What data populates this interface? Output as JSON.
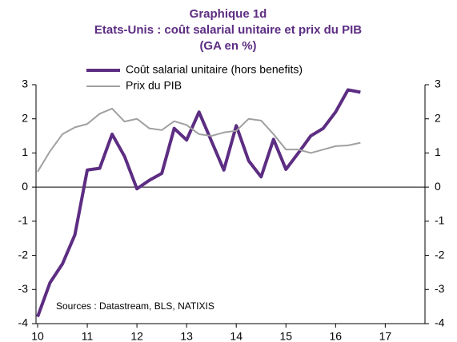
{
  "chart_data": {
    "type": "line",
    "title": "Graphique 1d",
    "subtitle": "Etats-Unis : coût salarial unitaire et prix du PIB",
    "subtitle2": "(GA en %)",
    "annotation": "Sources : Datastream, BLS,  NATIXIS",
    "x": [
      10,
      10.25,
      10.5,
      10.75,
      11,
      11.25,
      11.5,
      11.75,
      12,
      12.25,
      12.5,
      12.75,
      13,
      13.25,
      13.5,
      13.75,
      14,
      14.25,
      14.5,
      14.75,
      15,
      15.25,
      15.5,
      15.75,
      16,
      16.25,
      16.5
    ],
    "series": [
      {
        "name": "Coût salarial unitaire (hors benefits)",
        "color": "#5c2d82",
        "values": [
          -3.8,
          -2.8,
          -2.25,
          -1.4,
          0.5,
          0.55,
          1.55,
          0.9,
          -0.05,
          0.2,
          0.4,
          1.72,
          1.38,
          2.2,
          1.35,
          0.5,
          1.8,
          0.77,
          0.3,
          1.4,
          0.52,
          1.0,
          1.5,
          1.72,
          2.2,
          2.85,
          2.78
        ]
      },
      {
        "name": "Prix du PIB",
        "color": "#a0a0a0",
        "values": [
          0.45,
          1.05,
          1.55,
          1.75,
          1.85,
          2.15,
          2.3,
          1.92,
          2.0,
          1.72,
          1.67,
          1.93,
          1.82,
          1.55,
          1.5,
          1.6,
          1.65,
          2.0,
          1.95,
          1.55,
          1.1,
          1.1,
          1.0,
          1.1,
          1.2,
          1.22,
          1.3
        ]
      }
    ],
    "xlim": [
      10,
      17.8
    ],
    "xticks": [
      10,
      11,
      12,
      13,
      14,
      15,
      16,
      17
    ],
    "ylim": [
      -4,
      3
    ],
    "yticks": [
      -4,
      -3,
      -2,
      -1,
      0,
      1,
      2,
      3
    ],
    "y2lim": [
      -4,
      3
    ],
    "y2ticks": [
      -4,
      -3,
      -2,
      -1,
      0,
      1,
      2,
      3
    ]
  }
}
